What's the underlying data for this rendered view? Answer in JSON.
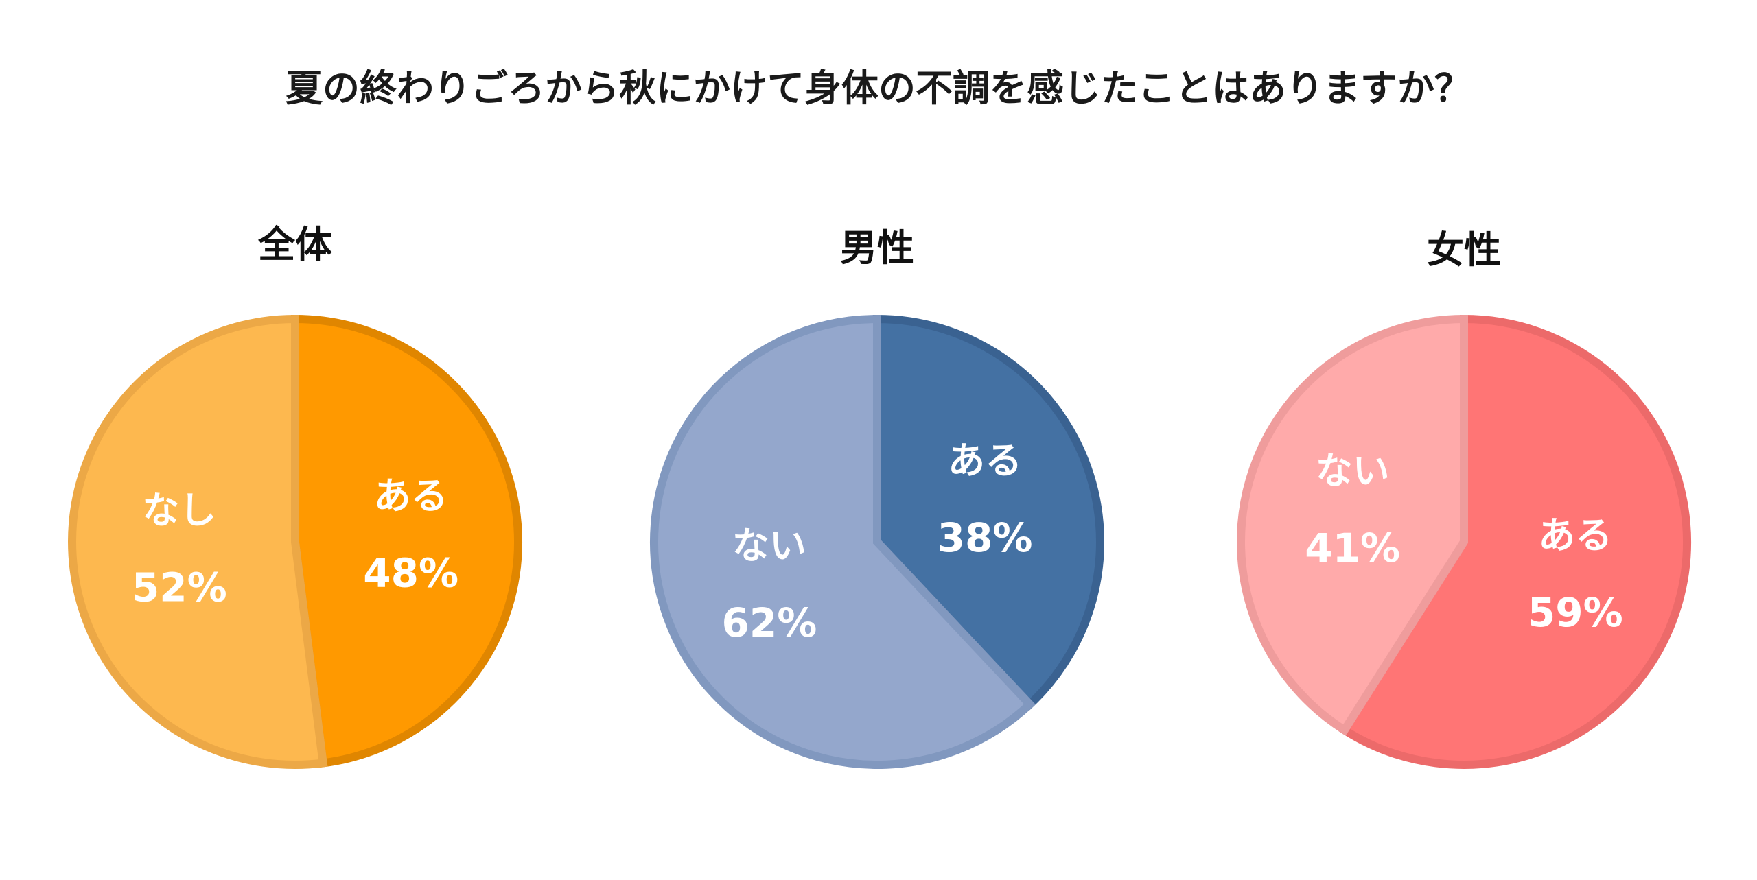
{
  "chart_data": {
    "type": "pie",
    "title": "夏の終わりごろから秋にかけて身体の不調を感じたことはありますか？",
    "charts": [
      {
        "title": "全体",
        "slices": [
          {
            "label": "ある",
            "value": 48,
            "value_text": "48%",
            "fill": "#FF9900",
            "stroke": "#E08600"
          },
          {
            "label": "なし",
            "value": 52,
            "value_text": "52%",
            "fill": "#FDB84F",
            "stroke": "#ECA846"
          }
        ]
      },
      {
        "title": "男性",
        "slices": [
          {
            "label": "ある",
            "value": 38,
            "value_text": "38%",
            "fill": "#4471A3",
            "stroke": "#3A6291"
          },
          {
            "label": "ない",
            "value": 62,
            "value_text": "62%",
            "fill": "#94A7CC",
            "stroke": "#8198BF"
          }
        ]
      },
      {
        "title": "女性",
        "slices": [
          {
            "label": "ある",
            "value": 59,
            "value_text": "59%",
            "fill": "#FF7575",
            "stroke": "#EC6A6A"
          },
          {
            "label": "ない",
            "value": 41,
            "value_text": "41%",
            "fill": "#FFAAAA",
            "stroke": "#EF9C9C"
          }
        ]
      }
    ]
  }
}
